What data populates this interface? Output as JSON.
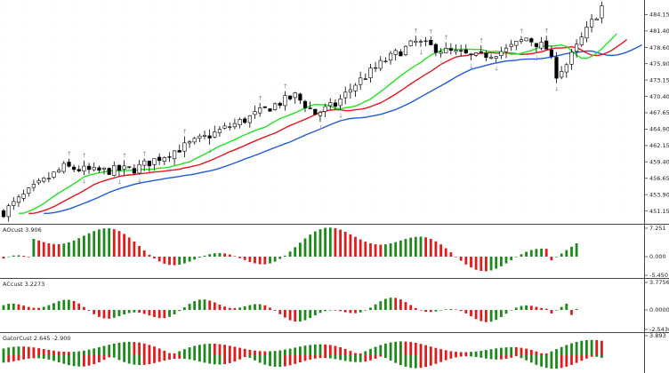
{
  "chart_data": {
    "type": "candlestick",
    "main": {
      "y_ticks": [
        "484.15",
        "481.40",
        "478.60",
        "475.90",
        "473.15",
        "470.40",
        "467.65",
        "464.90",
        "462.15",
        "459.40",
        "456.65",
        "453.90",
        "451.15"
      ],
      "ylim": [
        449.6,
        486.0
      ],
      "series": [
        {
          "key": "candles",
          "bull_color": "#ffffff",
          "bear_color": "#000000",
          "border": "#000000"
        },
        {
          "key": "jaw",
          "color": "#1f5bd8"
        },
        {
          "key": "teeth",
          "color": "#e8141e"
        },
        {
          "key": "lips",
          "color": "#21e321"
        }
      ],
      "fractal_arrow_up": "↑",
      "fractal_arrow_down": "↓"
    },
    "panels": [
      {
        "title": "AOcust 3.906",
        "ticks": [
          "7.251",
          "0.000",
          "-5.450"
        ],
        "tick_values": [
          7.251,
          0,
          -5.45
        ],
        "up_color": "#1b8a1b",
        "down_color": "#e11b1b"
      },
      {
        "title": "ACcust 3.2273",
        "ticks": [
          "3.7756",
          "0.0000",
          "-2.5430"
        ],
        "tick_values": [
          3.7756,
          0,
          -2.543
        ],
        "up_color": "#1b8a1b",
        "down_color": "#e11b1b"
      },
      {
        "title": "GatorCust 2.645 -2.900",
        "ticks": [
          "3.893"
        ],
        "tick_values": [
          3.893
        ],
        "up_color": "#1b8a1b",
        "down_color": "#e11b1b"
      }
    ]
  }
}
